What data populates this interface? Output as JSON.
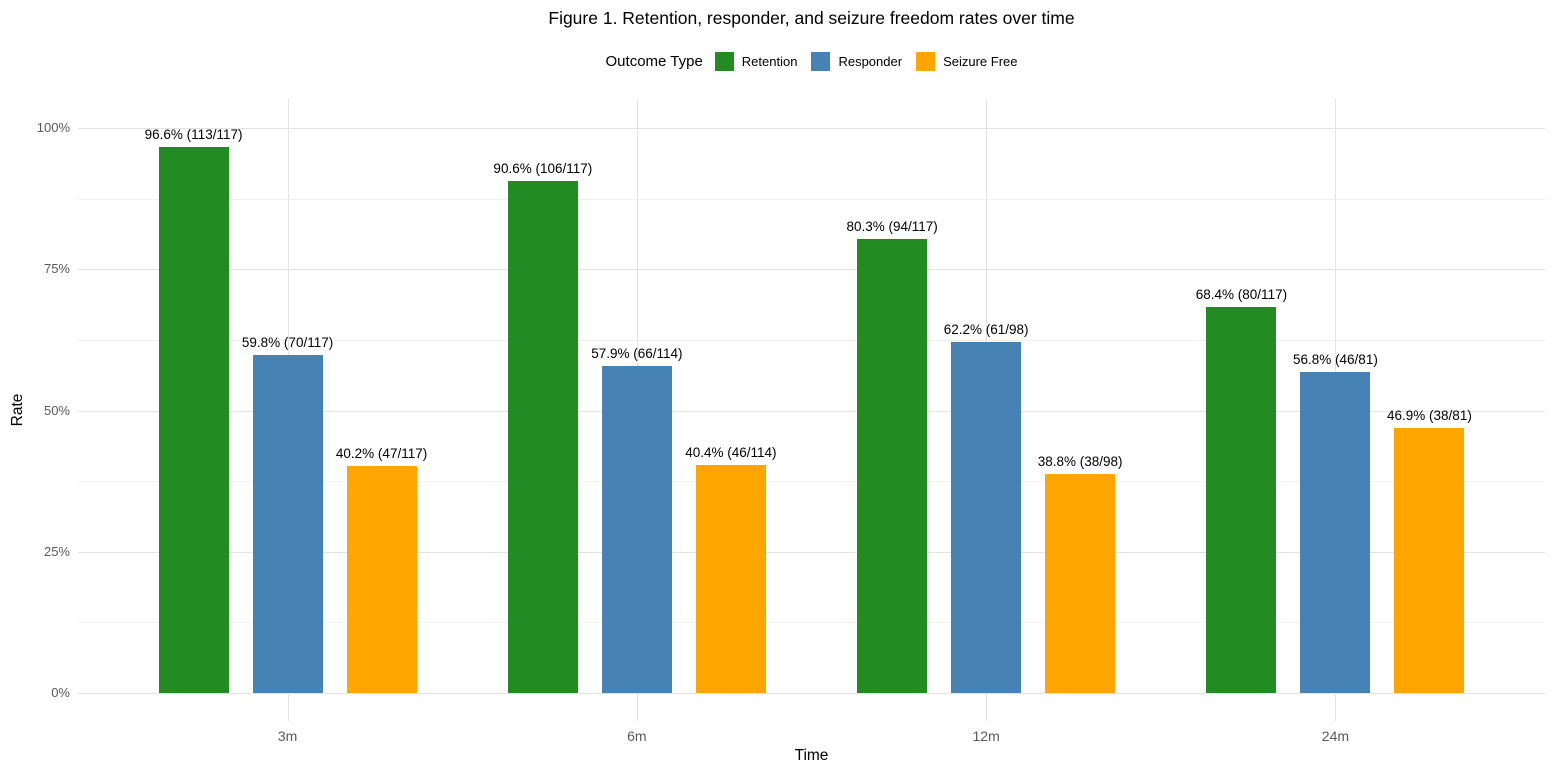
{
  "title": "Figure 1. Retention, responder, and seizure freedom rates over time",
  "legend": {
    "title": "Outcome Type",
    "items": [
      {
        "label": "Retention",
        "color": "#228B22"
      },
      {
        "label": "Responder",
        "color": "#4682B4"
      },
      {
        "label": "Seizure Free",
        "color": "#FFA500"
      }
    ]
  },
  "chart_data": {
    "type": "bar",
    "title": "Figure 1. Retention, responder, and seizure freedom rates over time",
    "xlabel": "Time",
    "ylabel": "Rate",
    "categories": [
      "3m",
      "6m",
      "12m",
      "24m"
    ],
    "series": [
      {
        "name": "Retention",
        "color": "#228B22",
        "values": [
          96.6,
          90.6,
          80.3,
          68.4
        ],
        "labels": [
          "96.6% (113/117)",
          "90.6% (106/117)",
          "80.3% (94/117)",
          "68.4% (80/117)"
        ]
      },
      {
        "name": "Responder",
        "color": "#4682B4",
        "values": [
          59.8,
          57.9,
          62.2,
          56.8
        ],
        "labels": [
          "59.8% (70/117)",
          "57.9% (66/114)",
          "62.2% (61/98)",
          "56.8% (46/81)"
        ]
      },
      {
        "name": "Seizure Free",
        "color": "#FFA500",
        "values": [
          40.2,
          40.4,
          38.8,
          46.9
        ],
        "labels": [
          "40.2% (47/117)",
          "40.4% (46/114)",
          "38.8% (38/98)",
          "46.9% (38/81)"
        ]
      }
    ],
    "y_ticks": [
      "0%",
      "25%",
      "50%",
      "75%",
      "100%"
    ],
    "y_tick_values": [
      0,
      25,
      50,
      75,
      100
    ],
    "y_minor_values": [
      12.5,
      37.5,
      62.5,
      87.5
    ],
    "ylim": [
      0,
      100
    ],
    "grid": true,
    "legend_position": "top",
    "grid_major_color": "#e3e3e3",
    "grid_minor_color": "#f1f1f1",
    "tick_text_color": "#595959",
    "label_text_color": "#000000"
  }
}
